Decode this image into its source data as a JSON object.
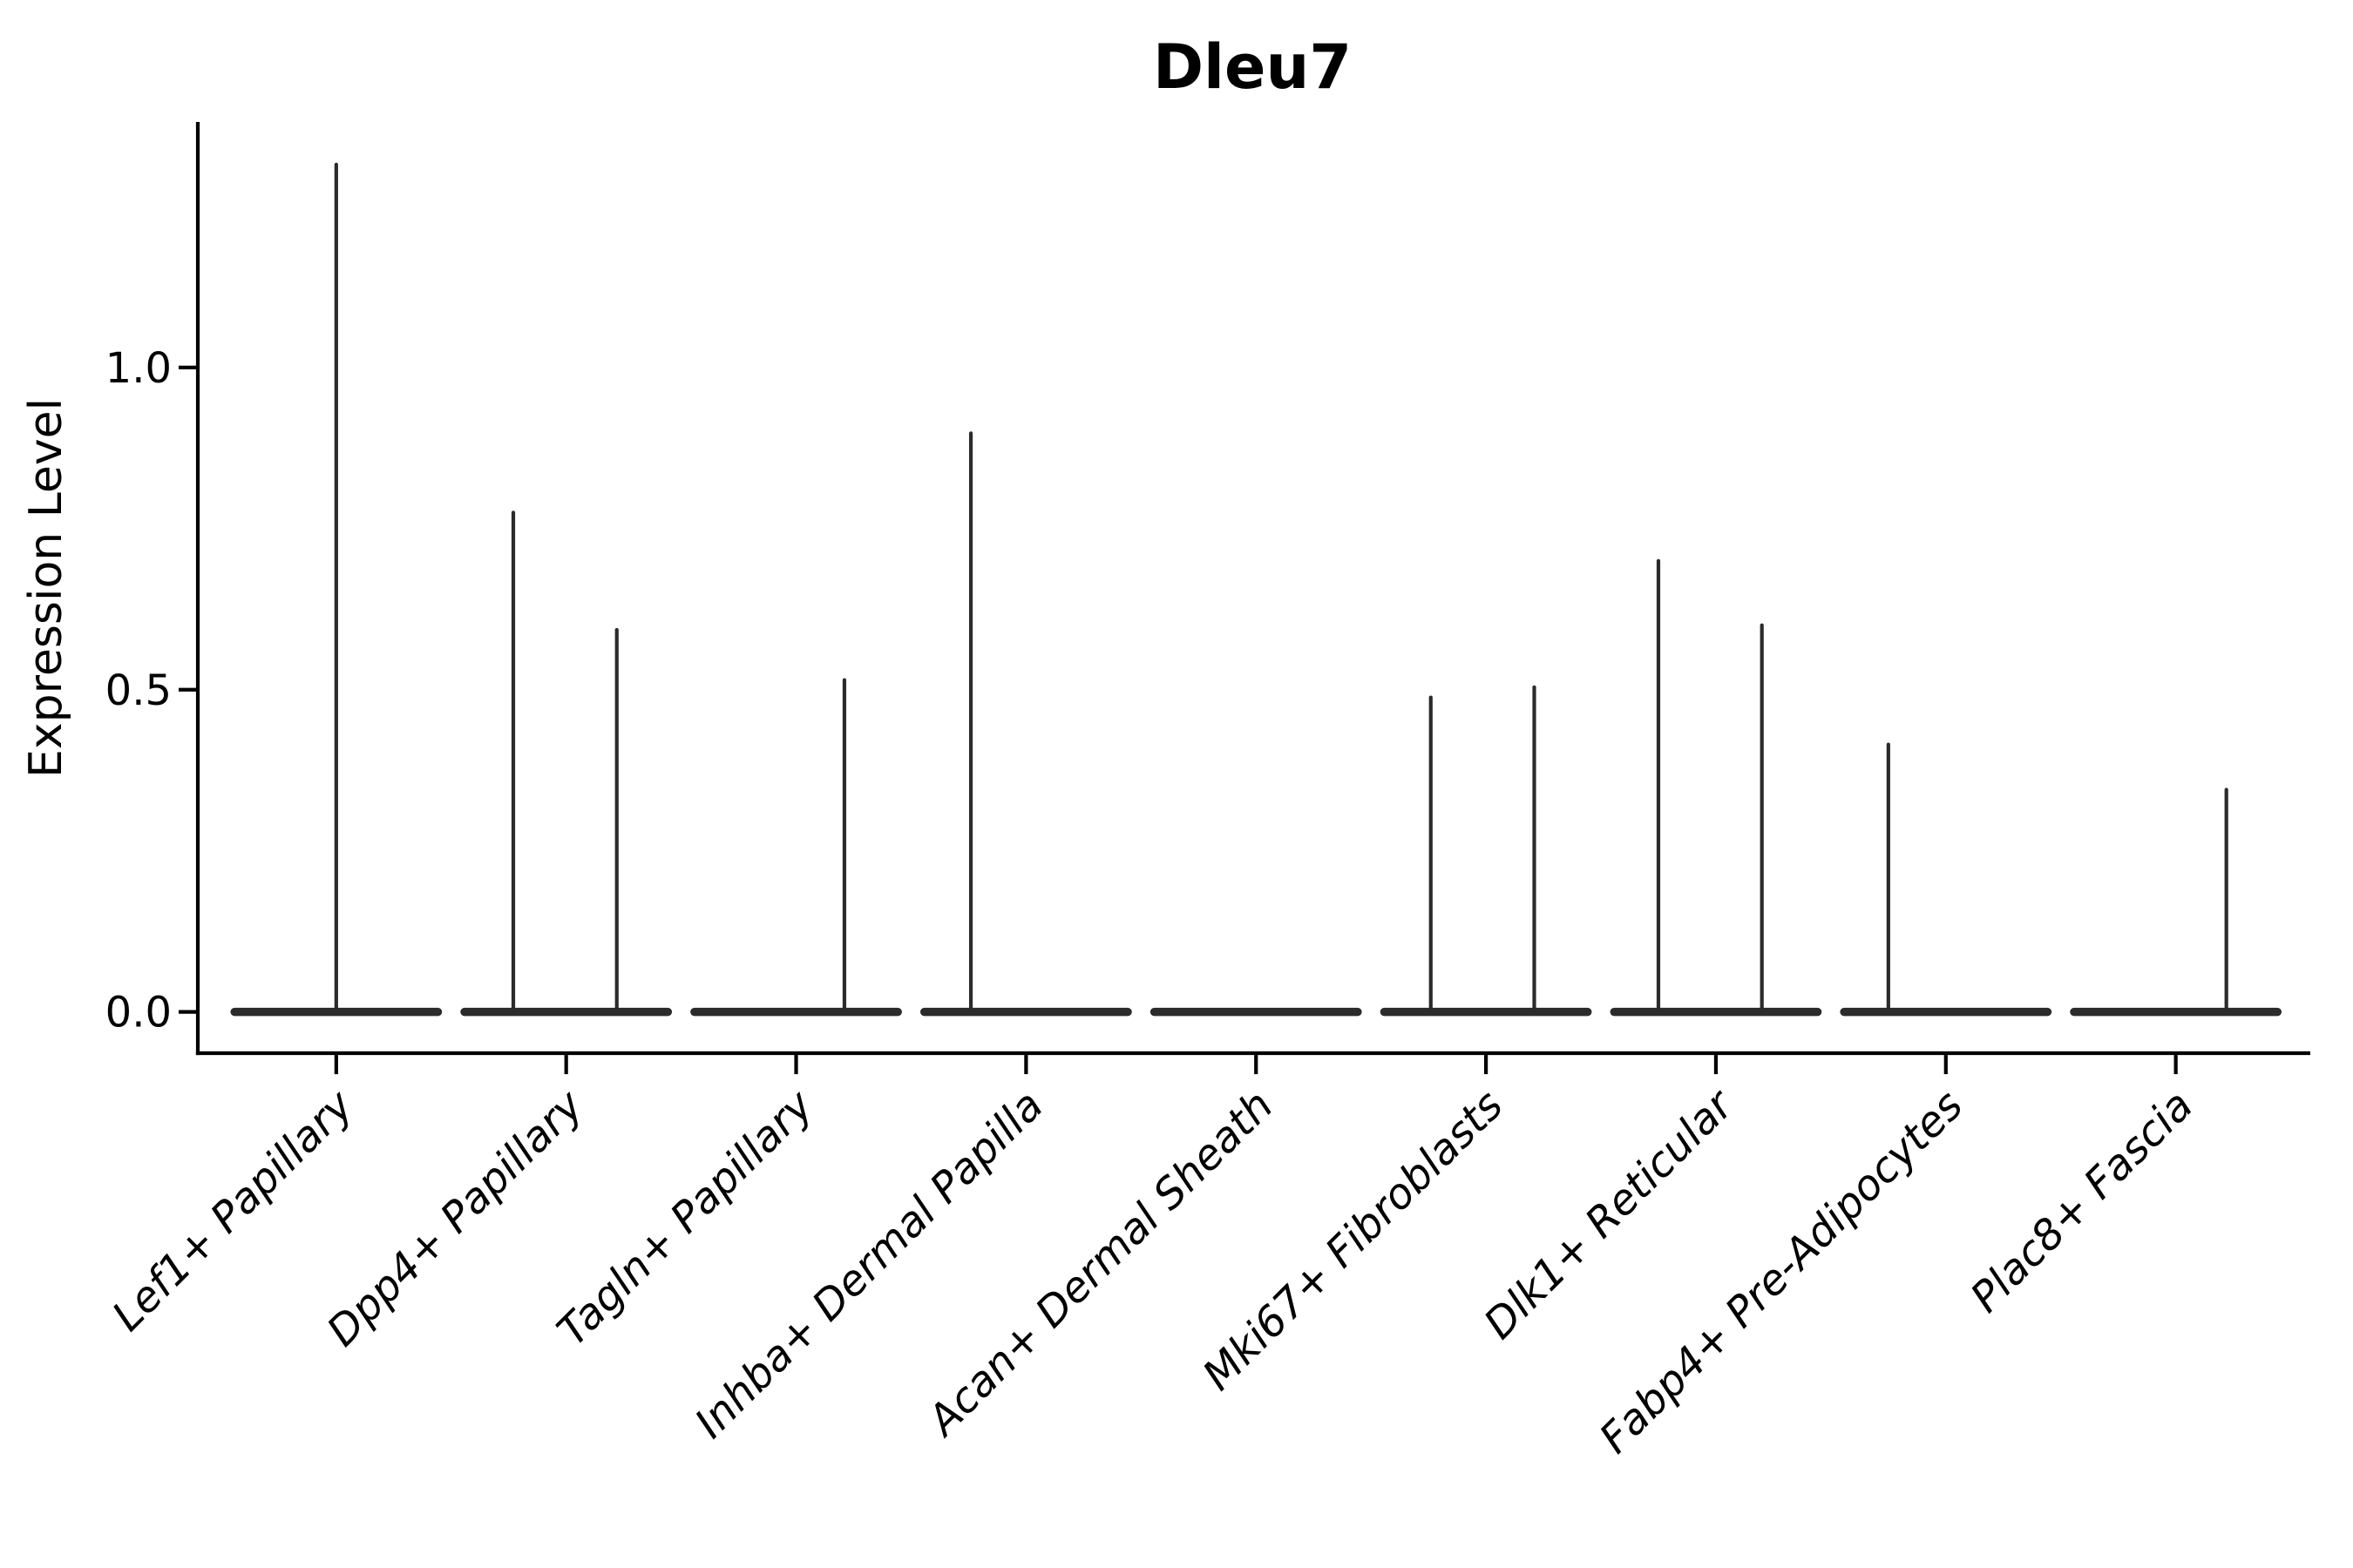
{
  "figure": {
    "background": "#ffffff"
  },
  "colors": {
    "violin": "#2b2b2b",
    "axis": "#000000",
    "text": "#000000"
  },
  "chart_data": {
    "type": "violin",
    "title": "Dleu7",
    "xlabel": "",
    "ylabel": "Expression Level",
    "grid": false,
    "legend": null,
    "ylim": [
      -0.064,
      1.381
    ],
    "yticks": [
      0.0,
      0.5,
      1.0
    ],
    "ytick_labels": [
      "0.0",
      "0.5",
      "1.0"
    ],
    "categories": [
      "Lef1+ Papillary",
      "Dpp4+ Papillary",
      "Tagln+ Papillary",
      "Inhba+ Dermal Papilla",
      "Acan+ Dermal Sheath",
      "Mki67+ Fibroblasts",
      "Dlk1+ Reticular",
      "Fabp4+ Pre-Adipocytes",
      "Plac8+ Fascia"
    ],
    "description": "Violin plot of Dleu7 expression per fibroblast cluster; each violin is a flat dense base at 0 with thin spikes reaching the maximum expression of rare positive cells.",
    "base_halfwidth": 0.46,
    "violins": [
      {
        "category": "Lef1+ Papillary",
        "spikes": [
          {
            "offset": 0.0,
            "max": 1.315
          }
        ]
      },
      {
        "category": "Dpp4+ Papillary",
        "spikes": [
          {
            "offset": -0.23,
            "max": 0.775
          },
          {
            "offset": 0.22,
            "max": 0.593
          }
        ]
      },
      {
        "category": "Tagln+ Papillary",
        "spikes": [
          {
            "offset": 0.21,
            "max": 0.515
          }
        ]
      },
      {
        "category": "Inhba+ Dermal Papilla",
        "spikes": [
          {
            "offset": -0.24,
            "max": 0.898
          }
        ]
      },
      {
        "category": "Acan+ Dermal Sheath",
        "spikes": []
      },
      {
        "category": "Mki67+ Fibroblasts",
        "spikes": [
          {
            "offset": -0.24,
            "max": 0.488
          },
          {
            "offset": 0.21,
            "max": 0.504
          }
        ]
      },
      {
        "category": "Dlk1+ Reticular",
        "spikes": [
          {
            "offset": -0.25,
            "max": 0.7
          },
          {
            "offset": 0.2,
            "max": 0.6
          }
        ]
      },
      {
        "category": "Fabp4+ Pre-Adipocytes",
        "spikes": [
          {
            "offset": -0.25,
            "max": 0.415
          }
        ]
      },
      {
        "category": "Plac8+ Fascia",
        "spikes": [
          {
            "offset": 0.22,
            "max": 0.345
          }
        ]
      }
    ]
  }
}
